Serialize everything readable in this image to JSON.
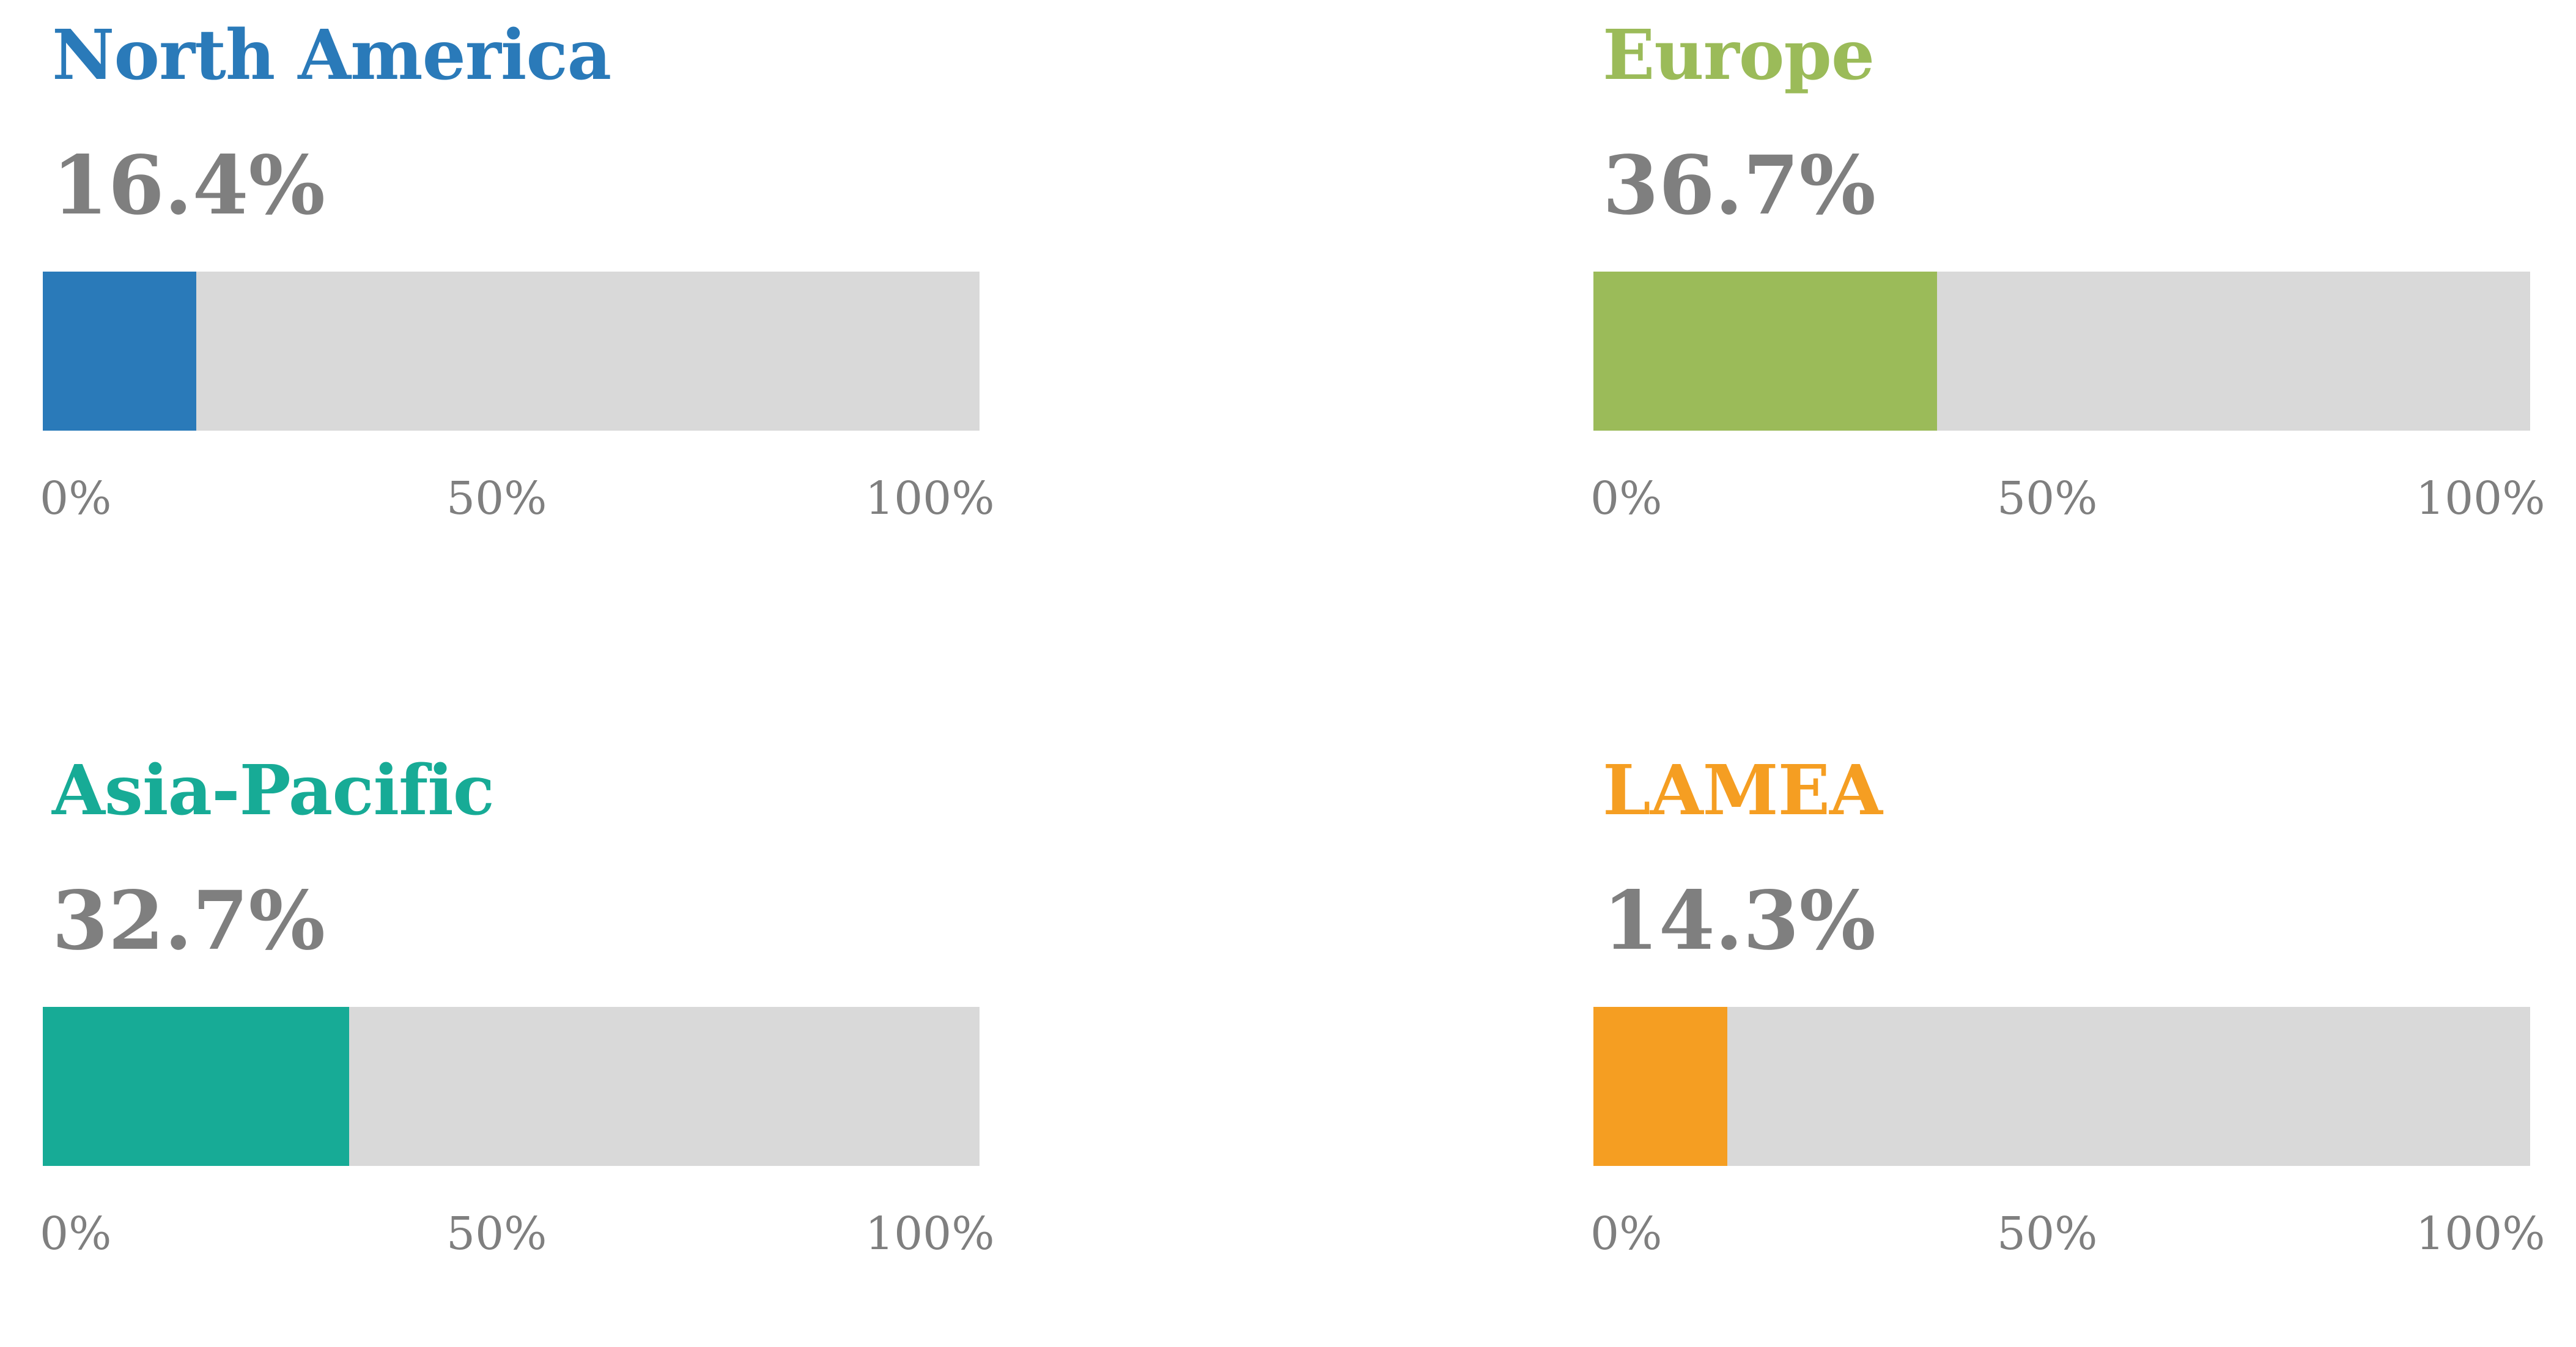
{
  "chart_data": {
    "type": "bar",
    "axis_ticks": [
      "0%",
      "50%",
      "100%"
    ],
    "xlim": [
      0,
      100
    ],
    "track_color": "#d9d9d9",
    "value_color": "#7f7f7f",
    "panels": [
      {
        "name": "North America",
        "value": 16.4,
        "label": "16.4%",
        "color": "#2a7ab9"
      },
      {
        "name": "Europe",
        "value": 36.7,
        "label": "36.7%",
        "color": "#9bbb59"
      },
      {
        "name": "Asia-Pacific",
        "value": 32.7,
        "label": "32.7%",
        "color": "#17ab96"
      },
      {
        "name": "LAMEA",
        "value": 14.3,
        "label": "14.3%",
        "color": "#f59e22"
      }
    ]
  }
}
